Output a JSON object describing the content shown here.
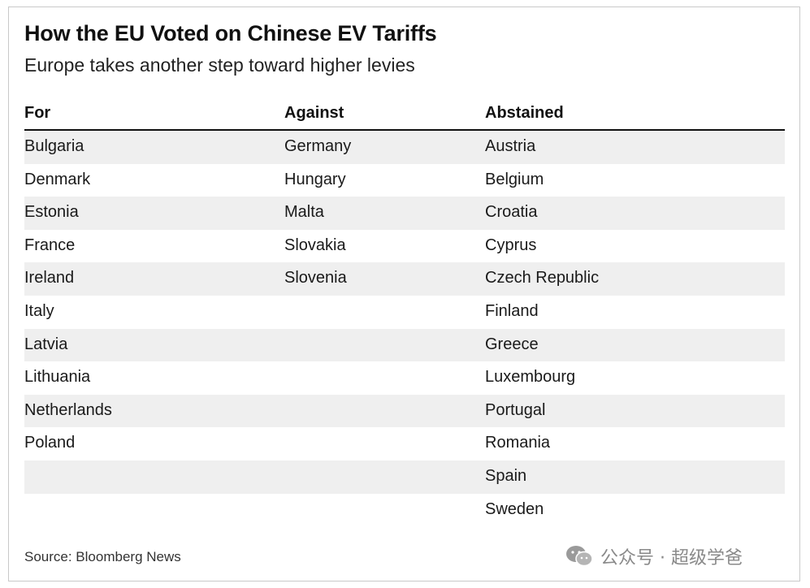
{
  "chart_data": {
    "type": "table",
    "title": "How the EU Voted on Chinese EV Tariffs",
    "subtitle": "Europe takes another step toward higher levies",
    "columns": [
      "For",
      "Against",
      "Abstained"
    ],
    "for": [
      "Bulgaria",
      "Denmark",
      "Estonia",
      "France",
      "Ireland",
      "Italy",
      "Latvia",
      "Lithuania",
      "Netherlands",
      "Poland"
    ],
    "against": [
      "Germany",
      "Hungary",
      "Malta",
      "Slovakia",
      "Slovenia"
    ],
    "abstained": [
      "Austria",
      "Belgium",
      "Croatia",
      "Cyprus",
      "Czech Republic",
      "Finland",
      "Greece",
      "Luxembourg",
      "Portugal",
      "Romania",
      "Spain",
      "Sweden"
    ],
    "source": "Source: Bloomberg News"
  },
  "watermark": {
    "text": "公众号 · 超级学爸",
    "icon": "wechat-icon"
  },
  "colors": {
    "row_shade": "#efefef",
    "rule": "#111111",
    "watermark": "#8a8a8a"
  }
}
